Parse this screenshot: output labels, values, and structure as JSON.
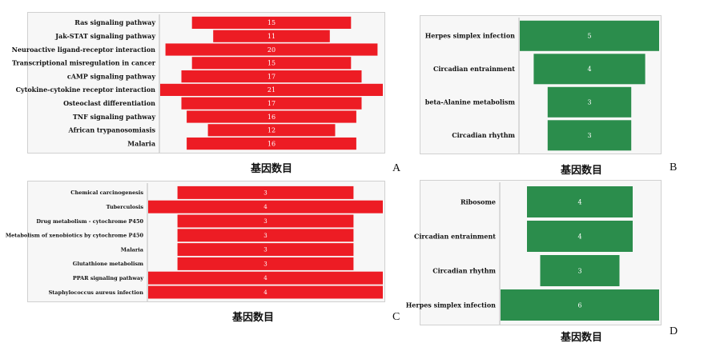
{
  "colors": {
    "red_bar": "#ed1c24",
    "green_bar": "#2b8d4c",
    "panel_bg": "#f7f7f7"
  },
  "chart_data": [
    {
      "panel_label": "A",
      "type": "bar",
      "orientation": "horizontal-centered",
      "xlabel": "基因数目",
      "color": "#ed1c24",
      "categories": [
        "Ras signaling pathway",
        "Jak-STAT signaling pathway",
        "Neuroactive ligand-receptor interaction",
        "Transcriptional misregulation in cancer",
        "cAMP signaling pathway",
        "Cytokine-cytokine receptor interaction",
        "Osteoclast differentiation",
        "TNF signaling pathway",
        "African trypanosomiasis",
        "Malaria"
      ],
      "values": [
        15,
        11,
        20,
        15,
        17,
        21,
        17,
        16,
        12,
        16
      ],
      "xlim": [
        0,
        21
      ]
    },
    {
      "panel_label": "B",
      "type": "bar",
      "orientation": "horizontal-centered",
      "xlabel": "基因数目",
      "color": "#2b8d4c",
      "categories": [
        "Herpes simplex infection",
        "Circadian entrainment",
        "beta-Alanine metabolism",
        "Circadian rhythm"
      ],
      "values": [
        5,
        4,
        3,
        3
      ],
      "xlim": [
        0,
        5
      ]
    },
    {
      "panel_label": "C",
      "type": "bar",
      "orientation": "horizontal-centered",
      "xlabel": "基因数目",
      "color": "#ed1c24",
      "categories": [
        "Chemical carcinogenesis",
        "Tuberculosis",
        "Drug metabolism - cytochrome P450",
        "Metabolism of xenobiotics by cytochrome P450",
        "Malaria",
        "Glutathione metabolism",
        "PPAR signaling pathway",
        "Staphylococcus aureus infection"
      ],
      "values": [
        3,
        4,
        3,
        3,
        3,
        3,
        4,
        4
      ],
      "xlim": [
        0,
        4
      ]
    },
    {
      "panel_label": "D",
      "type": "bar",
      "orientation": "horizontal-centered",
      "xlabel": "基因数目",
      "color": "#2b8d4c",
      "categories": [
        "Ribosome",
        "Circadian entrainment",
        "Circadian rhythm",
        "Herpes simplex infection"
      ],
      "values": [
        4,
        4,
        3,
        6
      ],
      "xlim": [
        0,
        6
      ]
    }
  ]
}
